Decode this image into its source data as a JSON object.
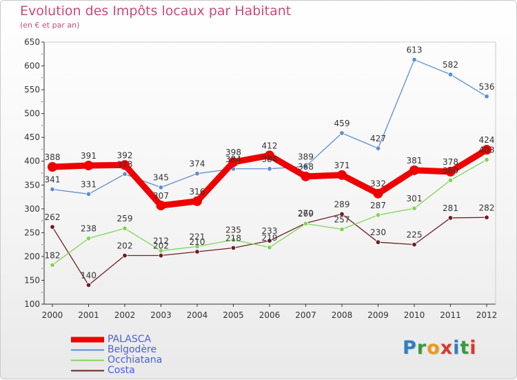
{
  "header": {
    "title": "Evolution des Impôts locaux par Habitant",
    "subtitle": "(en € et par an)"
  },
  "logo": {
    "text": "Proxiti",
    "letter_colors": [
      "#2f7fc4",
      "#3a9a3f",
      "#e89b1e",
      "#d63b2e",
      "#2f7fc4",
      "#3a9a3f",
      "#d63b2e"
    ]
  },
  "chart_data": {
    "type": "line",
    "x": [
      "2000",
      "2001",
      "2002",
      "2003",
      "2004",
      "2005",
      "2006",
      "2007",
      "2008",
      "2009",
      "2010",
      "2011",
      "2012"
    ],
    "ylim": [
      100,
      650
    ],
    "yticks": [
      100,
      150,
      200,
      250,
      300,
      350,
      400,
      450,
      500,
      550,
      600,
      650
    ],
    "grid": false,
    "legend_position": "bottom-left",
    "series": [
      {
        "name": "PALASCA",
        "color": "#ee0000",
        "values": [
          388,
          391,
          392,
          307,
          316,
          398,
          412,
          368,
          371,
          332,
          381,
          378,
          424
        ],
        "labels": [
          "388",
          "391",
          "392",
          "307",
          "316",
          "398",
          "412",
          "368",
          "371",
          "332",
          "381",
          "378",
          "424"
        ]
      },
      {
        "name": "Belgodère",
        "color": "#5a8ed0",
        "values": [
          341,
          331,
          373,
          345,
          374,
          384,
          384,
          389,
          459,
          427,
          613,
          582,
          536
        ],
        "labels": [
          "341",
          "331",
          "373",
          "345",
          "374",
          "384",
          "384",
          "389",
          "459",
          "427",
          "613",
          "582",
          "536"
        ]
      },
      {
        "name": "Occhiatana",
        "color": "#7fd454",
        "values": [
          182,
          238,
          259,
          212,
          221,
          235,
          219,
          269,
          257,
          287,
          301,
          360,
          403
        ],
        "labels": [
          "182",
          "238",
          "259",
          "212",
          "221",
          "235",
          "219",
          "269",
          "257",
          "287",
          "301",
          "360",
          "403"
        ]
      },
      {
        "name": "Costa",
        "color": "#6e1e20",
        "values": [
          262,
          140,
          202,
          202,
          210,
          218,
          233,
          270,
          289,
          230,
          225,
          281,
          282
        ],
        "labels": [
          "262",
          "140",
          "202",
          "202",
          "210",
          "218",
          "233",
          "270",
          "289",
          "230",
          "225",
          "281",
          "282"
        ]
      }
    ]
  }
}
